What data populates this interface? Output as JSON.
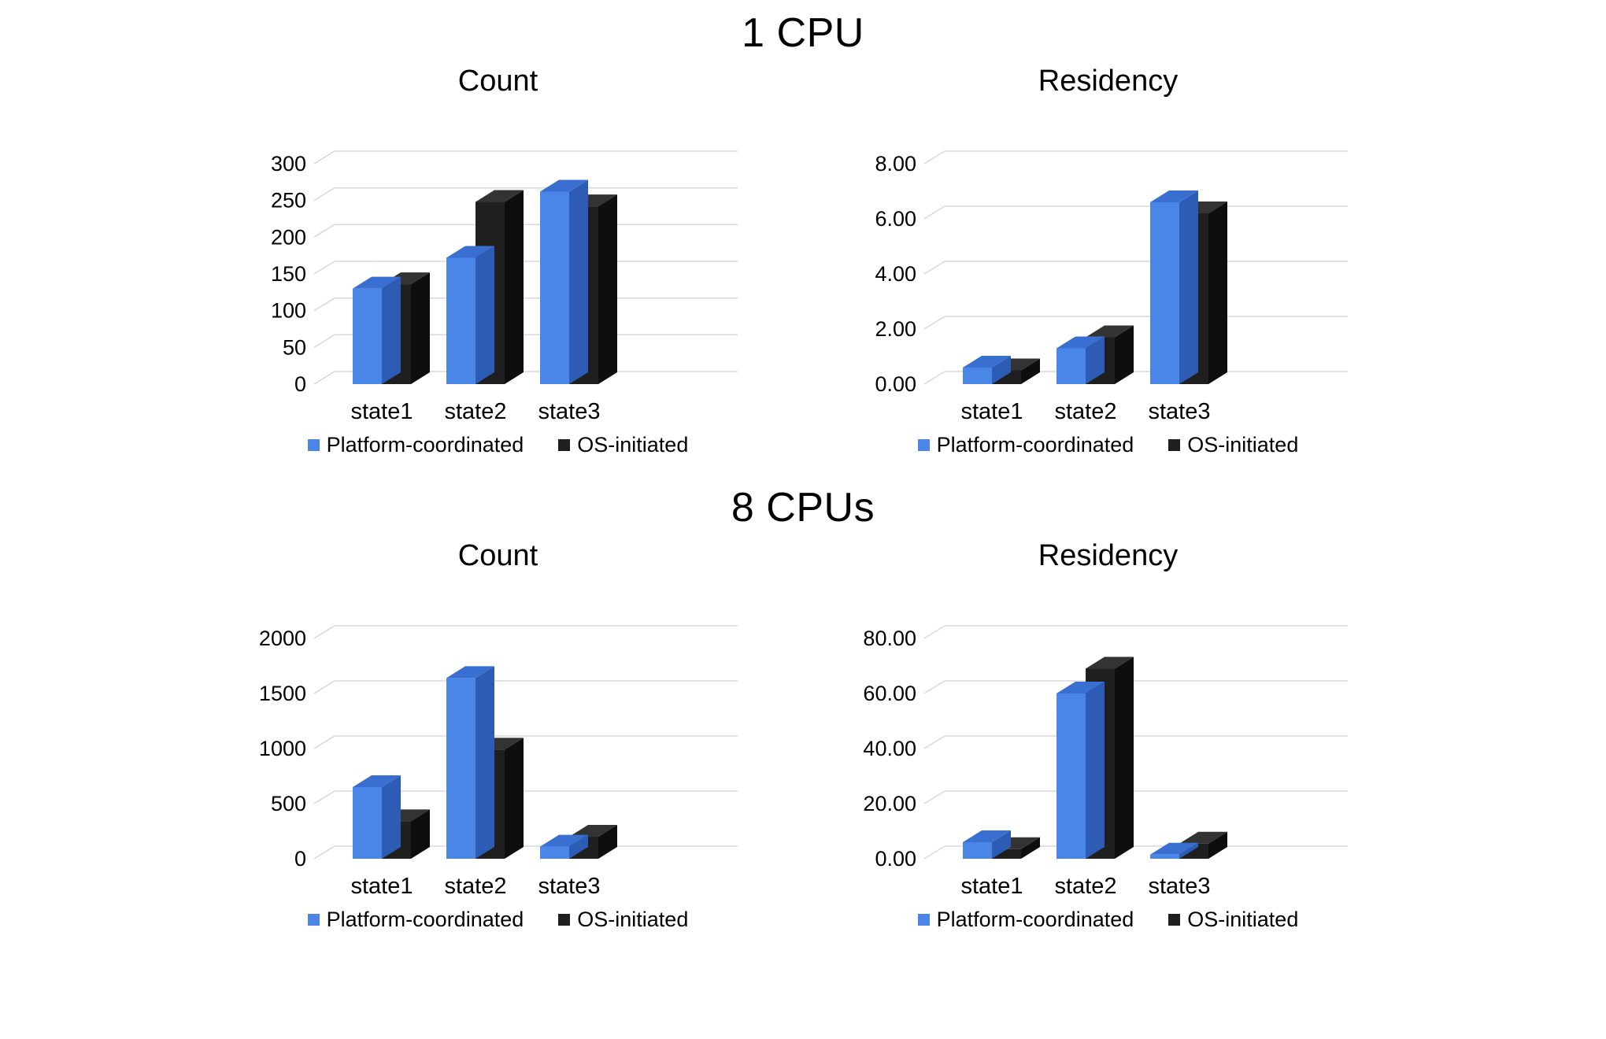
{
  "figure": {
    "background": "#ffffff",
    "groups": [
      {
        "title": "1 CPU"
      },
      {
        "title": "8 CPUs"
      }
    ]
  },
  "legend": {
    "platform_label": "Platform-coordinated",
    "os_label": "OS-initiated"
  },
  "colors": {
    "platform_front": "#4a85e8",
    "platform_top": "#3a6fd2",
    "platform_side": "#2d5cb4",
    "os_front": "#1f1f1f",
    "os_top": "#333333",
    "os_side": "#0e0e0e",
    "gridline": "#d9d9d9",
    "text": "#000000"
  },
  "chart_data": [
    {
      "type": "bar",
      "style": "3d-column",
      "group": "1 CPU",
      "title": "Count",
      "categories": [
        "state1",
        "state2",
        "state3"
      ],
      "series": [
        {
          "name": "Platform-coordinated",
          "values": [
            130,
            172,
            262
          ]
        },
        {
          "name": "OS-initiated",
          "values": [
            136,
            248,
            242
          ]
        }
      ],
      "xlabel": "",
      "ylabel": "",
      "ylim": [
        0,
        300
      ],
      "ytick_step": 50,
      "tick_format": "int",
      "grid": true,
      "legend_position": "bottom"
    },
    {
      "type": "bar",
      "style": "3d-column",
      "group": "1 CPU",
      "title": "Residency",
      "categories": [
        "state1",
        "state2",
        "state3"
      ],
      "series": [
        {
          "name": "Platform-coordinated",
          "values": [
            0.6,
            1.3,
            6.6
          ]
        },
        {
          "name": "OS-initiated",
          "values": [
            0.5,
            1.7,
            6.2
          ]
        }
      ],
      "xlabel": "",
      "ylabel": "",
      "ylim": [
        0,
        8
      ],
      "ytick_step": 2,
      "tick_format": "2dp",
      "grid": true,
      "legend_position": "bottom"
    },
    {
      "type": "bar",
      "style": "3d-column",
      "group": "8 CPUs",
      "title": "Count",
      "categories": [
        "state1",
        "state2",
        "state3"
      ],
      "series": [
        {
          "name": "Platform-coordinated",
          "values": [
            650,
            1640,
            110
          ]
        },
        {
          "name": "OS-initiated",
          "values": [
            340,
            990,
            200
          ]
        }
      ],
      "xlabel": "",
      "ylabel": "",
      "ylim": [
        0,
        2000
      ],
      "ytick_step": 500,
      "tick_format": "int",
      "grid": true,
      "legend_position": "bottom"
    },
    {
      "type": "bar",
      "style": "3d-column",
      "group": "8 CPUs",
      "title": "Residency",
      "categories": [
        "state1",
        "state2",
        "state3"
      ],
      "series": [
        {
          "name": "Platform-coordinated",
          "values": [
            6.0,
            60.0,
            1.5
          ]
        },
        {
          "name": "OS-initiated",
          "values": [
            3.5,
            69.0,
            5.5
          ]
        }
      ],
      "xlabel": "",
      "ylabel": "",
      "ylim": [
        0,
        80
      ],
      "ytick_step": 20,
      "tick_format": "2dp",
      "grid": true,
      "legend_position": "bottom"
    }
  ]
}
